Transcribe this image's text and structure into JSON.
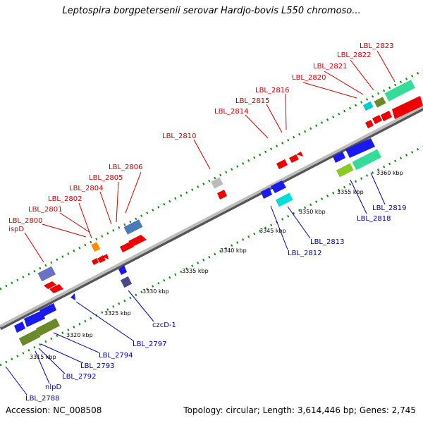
{
  "title": "Leptospira borgpetersenii serovar Hardjo-bovis L550 chromoso...",
  "footer": {
    "accession": "Accession: NC_008508",
    "summary": "Topology: circular; Length: 3,614,446 bp; Genes: 2,745"
  },
  "colors": {
    "forward_gene": "#ee0000",
    "reverse_gene": "#1a1aee",
    "backbone": "#999999",
    "tick_dots": "#118811",
    "label_forward": "#cc0000",
    "label_reverse": "#0000aa"
  },
  "ticks": [
    {
      "label": "3315 kbp"
    },
    {
      "label": "3320 kbp"
    },
    {
      "label": "3325 kbp"
    },
    {
      "label": "3330 kbp"
    },
    {
      "label": "3335 kbp"
    },
    {
      "label": "3340 kbp"
    },
    {
      "label": "3345 kbp"
    },
    {
      "label": "3350 kbp"
    },
    {
      "label": "3355 kbp"
    },
    {
      "label": "3360 kbp"
    }
  ],
  "top_labels": [
    {
      "text": "ispD"
    },
    {
      "text": "LBL_2800"
    },
    {
      "text": "LBL_2801"
    },
    {
      "text": "LBL_2802"
    },
    {
      "text": "LBL_2804"
    },
    {
      "text": "LBL_2805"
    },
    {
      "text": "LBL_2806"
    },
    {
      "text": "LBL_2810"
    },
    {
      "text": "LBL_2814"
    },
    {
      "text": "LBL_2815"
    },
    {
      "text": "LBL_2816"
    },
    {
      "text": "LBL_2820"
    },
    {
      "text": "LBL_2821"
    },
    {
      "text": "LBL_2822"
    },
    {
      "text": "LBL_2823"
    }
  ],
  "bottom_labels": [
    {
      "text": "LBL_2788"
    },
    {
      "text": "nlpD"
    },
    {
      "text": "LBL_2792"
    },
    {
      "text": "LBL_2793"
    },
    {
      "text": "LBL_2794"
    },
    {
      "text": "LBL_2797"
    },
    {
      "text": "czcD-1"
    },
    {
      "text": "LBL_2812"
    },
    {
      "text": "LBL_2813"
    },
    {
      "text": "LBL_2818"
    },
    {
      "text": "LBL_2819"
    }
  ]
}
